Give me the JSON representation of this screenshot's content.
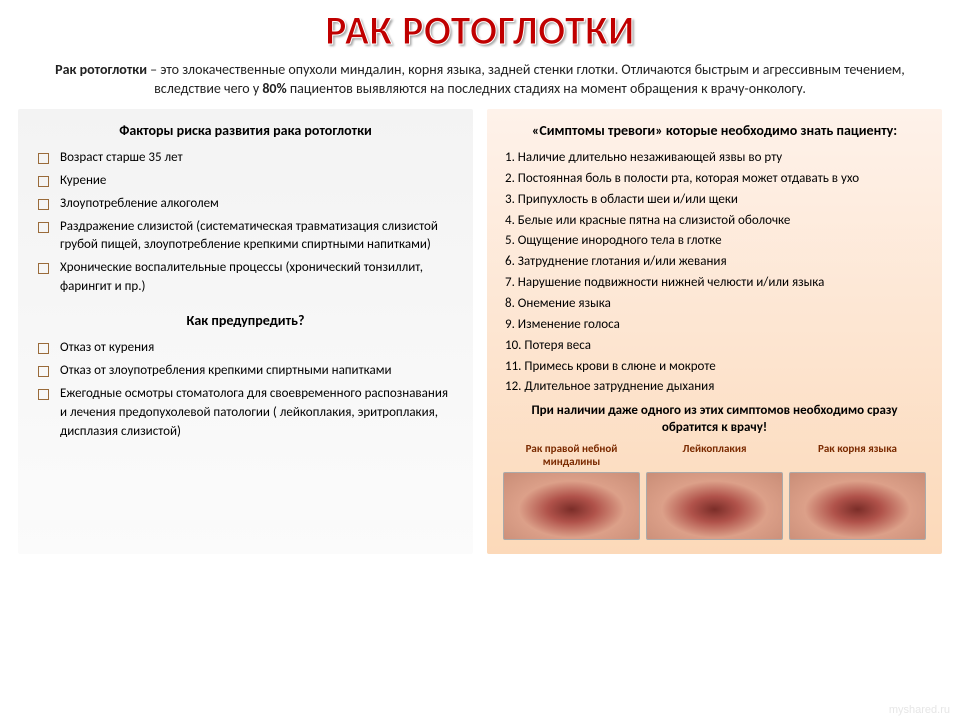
{
  "title": "РАК РОТОГЛОТКИ",
  "intro_prefix": "Рак ротоглотки",
  "intro_body": " – это злокачественные опухоли миндалин, корня языка, задней стенки глотки. Отличаются быстрым и агрессивным течением, вследствие чего у ",
  "intro_pct": "80%",
  "intro_suffix": " пациентов выявляются на последних стадиях на момент обращения к врачу-онкологу.",
  "left": {
    "heading": "Факторы риска развития рака ротоглотки",
    "risks": [
      "Возраст старше 35 лет",
      "Курение",
      "Злоупотребление алкоголем",
      "Раздражение слизистой (систематическая травматизация слизистой грубой пищей, злоупотребление крепкими спиртными напитками)",
      "Хронические воспалительные процессы (хронический тонзиллит, фарингит и пр.)"
    ],
    "sub_heading": "Как предупредить?",
    "prevention": [
      "Отказ от курения",
      "Отказ от злоупотребления крепкими спиртными напитками",
      "Ежегодные осмотры стоматолога для своевременного распознавания и лечения предопухолевой патологии ( лейкоплакия, эритроплакия, дисплазия слизистой)"
    ]
  },
  "right": {
    "heading": "«Симптомы тревоги» которые необходимо знать пациенту:",
    "symptoms": [
      "1. Наличие длительно незаживающей язвы во рту",
      "2. Постоянная боль в полости рта, которая может отдавать в ухо",
      "3. Припухлость в области шеи и/или щеки",
      "4. Белые или красные пятна на слизистой оболочке",
      "5. Ощущение инородного тела в глотке",
      "6. Затруднение глотания и/или жевания",
      "7. Нарушение подвижности нижней челюсти и/или языка",
      "8. Онемение языка",
      "9. Изменение голоса",
      "10. Потеря веса",
      "11. Примесь крови в слюне и мокроте",
      "12. Длительное затруднение дыхания"
    ],
    "call_to_action": "При наличии даже одного из этих симптомов необходимо сразу обратится к врачу!",
    "images": [
      {
        "label": "Рак правой небной миндалины"
      },
      {
        "label": "Лейкоплакия"
      },
      {
        "label": "Рак корня языка"
      }
    ]
  },
  "footer": "myshared.ru"
}
